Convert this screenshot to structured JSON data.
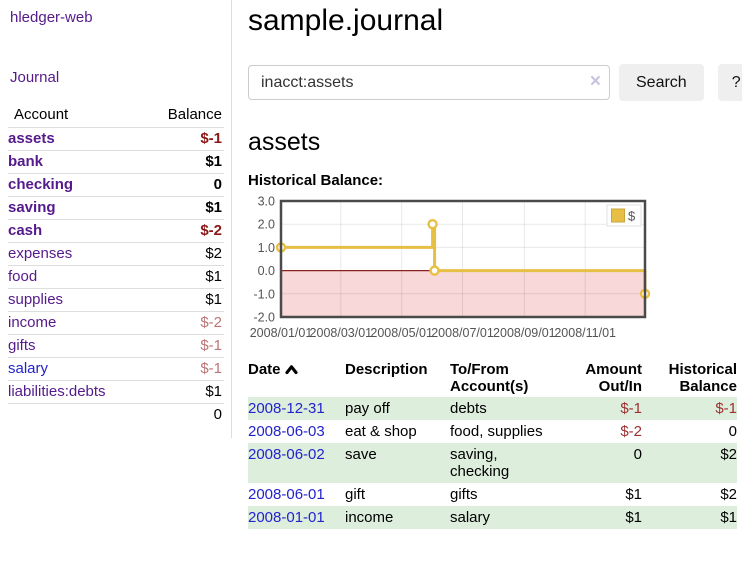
{
  "colors": {
    "link_purple": "#551a8b",
    "link_blue": "#2323cc",
    "negative_strong": "#8b1717",
    "negative": "#9d3030",
    "negative_muted": "#bd7575",
    "stripe_green": "#ddeedd",
    "border_gray": "#dddddd",
    "button_gray": "#efefef",
    "chart_line_gold": "#e8bf45",
    "chart_negative_pink": "#f8d8d8",
    "chart_zero_line": "#8b2020"
  },
  "app": {
    "brand": "hledger-web",
    "nav_journal": "Journal"
  },
  "sidebar": {
    "headers": {
      "account": "Account",
      "balance": "Balance"
    },
    "accounts": [
      {
        "name": "assets",
        "depth": 1,
        "bold": true,
        "link": "purple",
        "balance": "$-1",
        "balance_style": "neg-strong"
      },
      {
        "name": "bank",
        "depth": 2,
        "bold": true,
        "link": "purple",
        "balance": "$1",
        "balance_style": "pos"
      },
      {
        "name": "checking",
        "depth": 3,
        "bold": true,
        "link": "purple",
        "balance": "0",
        "balance_style": "pos"
      },
      {
        "name": "saving",
        "depth": 3,
        "bold": true,
        "link": "purple",
        "balance": "$1",
        "balance_style": "pos"
      },
      {
        "name": "cash",
        "depth": 2,
        "bold": true,
        "link": "purple",
        "balance": "$-2",
        "balance_style": "neg-strong"
      },
      {
        "name": "expenses",
        "depth": 1,
        "bold": false,
        "link": "purple",
        "balance": "$2",
        "balance_style": "pos"
      },
      {
        "name": "food",
        "depth": 2,
        "bold": false,
        "link": "purple",
        "balance": "$1",
        "balance_style": "pos"
      },
      {
        "name": "supplies",
        "depth": 2,
        "bold": false,
        "link": "purple",
        "balance": "$1",
        "balance_style": "pos"
      },
      {
        "name": "income",
        "depth": 1,
        "bold": false,
        "link": "purple",
        "balance": "$-2",
        "balance_style": "neg-muted"
      },
      {
        "name": "gifts",
        "depth": 2,
        "bold": false,
        "link": "purple",
        "balance": "$-1",
        "balance_style": "neg-muted"
      },
      {
        "name": "salary",
        "depth": 2,
        "bold": false,
        "link": "blue",
        "balance": "$-1",
        "balance_style": "neg-muted"
      },
      {
        "name": "liabilities:debts",
        "depth": 1,
        "bold": false,
        "link": "purple",
        "balance": "$1",
        "balance_style": "pos"
      }
    ],
    "total": "0"
  },
  "main": {
    "title": "sample.journal",
    "search": {
      "value": "inacct:assets",
      "clear_icon": "×",
      "button_label": "Search",
      "help_label": "?"
    },
    "account_heading": "assets",
    "chart_label": "Historical Balance:"
  },
  "journal": {
    "headers": {
      "date": "Date",
      "description": "Description",
      "accounts": "To/From Account(s)",
      "amount": "Amount Out/In",
      "balance": "Historical Balance"
    },
    "rows": [
      {
        "date": "2008-12-31",
        "description": "pay off",
        "accounts": "debts",
        "amount": "$-1",
        "amount_style": "neg",
        "balance": "$-1",
        "balance_style": "neg"
      },
      {
        "date": "2008-06-03",
        "description": "eat & shop",
        "accounts": "food, supplies",
        "amount": "$-2",
        "amount_style": "neg",
        "balance": "0",
        "balance_style": "pos"
      },
      {
        "date": "2008-06-02",
        "description": "save",
        "accounts": "saving, checking",
        "amount": "0",
        "amount_style": "pos",
        "balance": "$2",
        "balance_style": "pos"
      },
      {
        "date": "2008-06-01",
        "description": "gift",
        "accounts": "gifts",
        "amount": "$1",
        "amount_style": "pos",
        "balance": "$2",
        "balance_style": "pos"
      },
      {
        "date": "2008-01-01",
        "description": "income",
        "accounts": "salary",
        "amount": "$1",
        "amount_style": "pos",
        "balance": "$1",
        "balance_style": "pos"
      }
    ]
  },
  "chart_data": {
    "type": "line",
    "title": "Historical Balance:",
    "step": true,
    "x_range": [
      "2008-01-01",
      "2008-12-31"
    ],
    "ylim": [
      -2.0,
      3.0
    ],
    "y_ticks": [
      3.0,
      2.0,
      1.0,
      0.0,
      -1.0,
      -2.0
    ],
    "x_ticks": [
      "2008/01/01",
      "2008/03/01",
      "2008/05/01",
      "2008/07/01",
      "2008/09/01",
      "2008/11/01"
    ],
    "series": [
      {
        "name": "$",
        "color": "#e8bf45",
        "points": [
          {
            "x": "2008-01-01",
            "y": 1.0
          },
          {
            "x": "2008-06-01",
            "y": 2.0
          },
          {
            "x": "2008-06-03",
            "y": 0.0
          },
          {
            "x": "2008-12-31",
            "y": -1.0
          }
        ]
      }
    ],
    "legend": {
      "position": "top-right",
      "labels": [
        "$"
      ]
    },
    "negative_region_color": "#f8d8d8",
    "zero_line_color": "#8b2020",
    "grid": true
  }
}
